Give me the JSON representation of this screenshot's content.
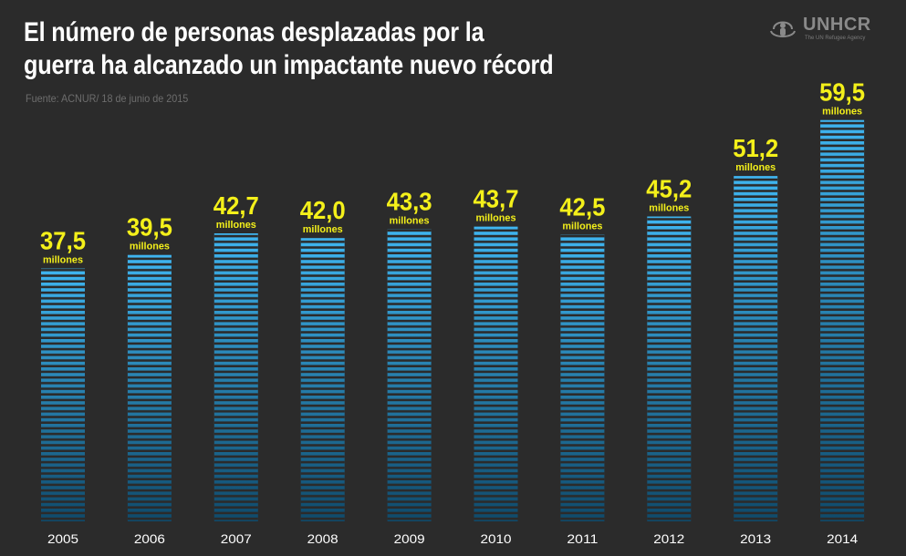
{
  "header": {
    "title": "El número de personas desplazadas por la guerra ha alcanzado un impactante nuevo récord",
    "source": "Fuente: ACNUR/ 18 de junio de 2015"
  },
  "logo": {
    "brand": "UNHCR",
    "tagline": "The UN Refugee Agency",
    "icon": "unhcr-emblem-icon"
  },
  "colors": {
    "background": "#2b2b2b",
    "bar_top": "#3fb5f0",
    "bar_bottom": "#0f4a6b",
    "value_label": "#f4f01a",
    "axis_label": "#ffffff"
  },
  "chart_data": {
    "type": "bar",
    "title": "El número de personas desplazadas por la guerra ha alcanzado un impactante nuevo récord",
    "categories": [
      "2005",
      "2006",
      "2007",
      "2008",
      "2009",
      "2010",
      "2011",
      "2012",
      "2013",
      "2014"
    ],
    "values": [
      37.5,
      39.5,
      42.7,
      42.0,
      43.3,
      43.7,
      42.5,
      45.2,
      51.2,
      59.5
    ],
    "value_labels": [
      "37,5",
      "39,5",
      "42,7",
      "42,0",
      "43,3",
      "43,7",
      "42,5",
      "45,2",
      "51,2",
      "59,5"
    ],
    "unit_label": "millones",
    "xlabel": "",
    "ylabel": "",
    "grid": false,
    "legend": "none"
  }
}
